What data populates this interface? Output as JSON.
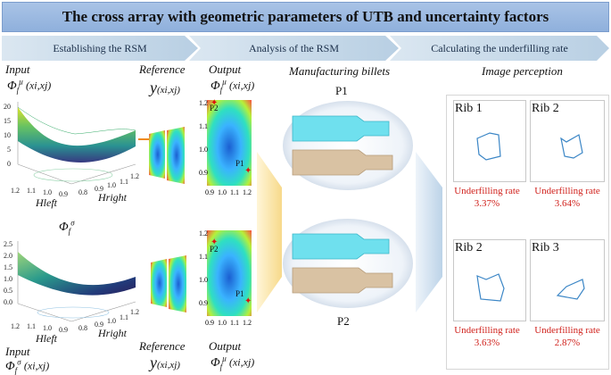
{
  "title": "The cross array with geometric parameters of UTB and uncertainty factors",
  "stages": [
    {
      "label": "Establishing the RSM"
    },
    {
      "label": "Analysis of the RSM"
    },
    {
      "label": "Calculating the underfilling rate"
    }
  ],
  "labels": {
    "input": "Input",
    "reference": "Reference",
    "output": "Output",
    "phi_mu_symbol": "Φ",
    "phi_mu_sub": "f",
    "phi_mu_sup": "μ",
    "phi_sigma_sup": "σ",
    "arg_xy": "(xi,xj)",
    "y_symbol": "y",
    "manufacturing": "Manufacturing billets",
    "image_perception": "Image perception",
    "p1": "P1",
    "p2": "P2",
    "hleft": "Hleft",
    "hright": "Hright"
  },
  "surface_top": {
    "z_ticks": [
      "20",
      "15",
      "10",
      "5",
      "0"
    ],
    "x_ticks": [
      "1.2",
      "1.1",
      "1.0",
      "0.9",
      "0.8"
    ],
    "y_ticks": [
      "0.8",
      "0.9",
      "1.0",
      "1.1",
      "1.2"
    ]
  },
  "surface_bottom": {
    "z_ticks": [
      "2.5",
      "2.0",
      "1.5",
      "1.0",
      "0.5",
      "0.0"
    ],
    "x_ticks": [
      "1.2",
      "1.1",
      "1.0",
      "0.9",
      "0.8"
    ],
    "y_ticks": [
      "0.8",
      "0.9",
      "1.0",
      "1.1",
      "1.2"
    ]
  },
  "contour_ticks": {
    "y": [
      "1.2",
      "1.1",
      "1.0",
      "0.9"
    ],
    "x": [
      "0.9",
      "1.0",
      "1.1",
      "1.2"
    ]
  },
  "ribs": [
    {
      "name": "Rib 1",
      "rate_label": "Underfilling rate",
      "rate": "3.37%"
    },
    {
      "name": "Rib 2",
      "rate_label": "Underfilling rate",
      "rate": "3.64%"
    },
    {
      "name": "Rib 2",
      "rate_label": "Underfilling rate",
      "rate": "3.63%"
    },
    {
      "name": "Rib 3",
      "rate_label": "Underfilling rate",
      "rate": "2.87%"
    }
  ],
  "colors": {
    "title_bg": "#a9c3e6",
    "stage_arrow": "#c9dcea",
    "rate_text": "#d0201b",
    "contour_blue": "#3b86c6"
  }
}
